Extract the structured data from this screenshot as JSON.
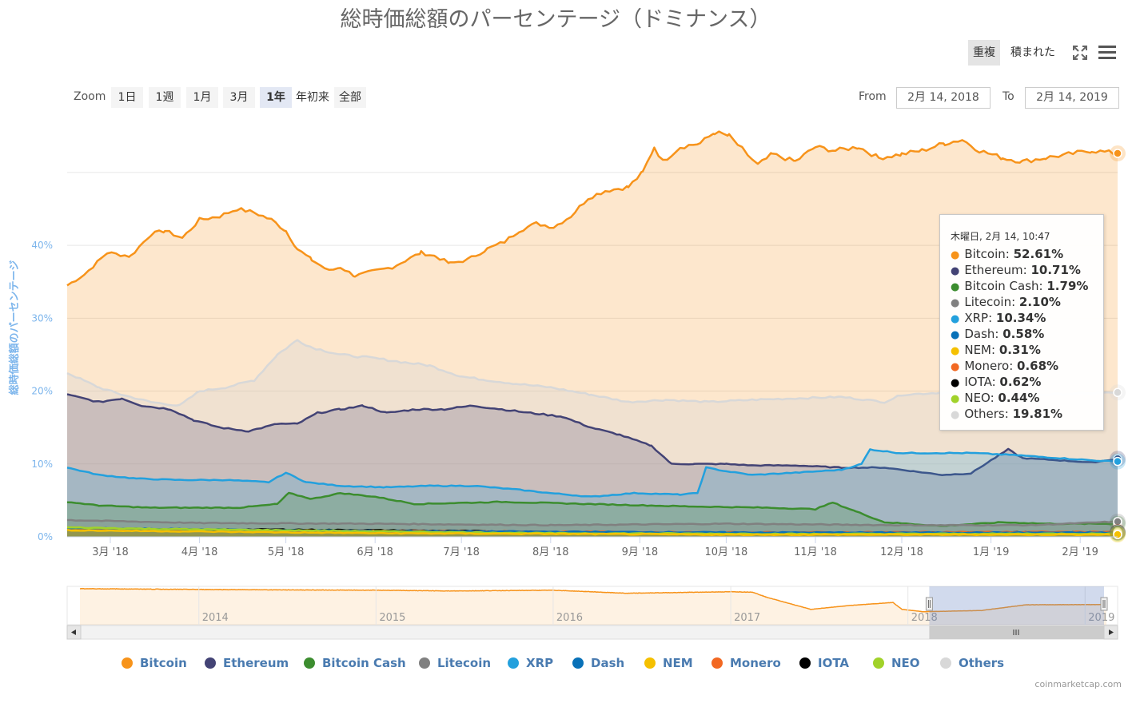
{
  "title": "総時価総額のパーセンテージ（ドミナンス）",
  "stacking_buttons": [
    {
      "label": "重複",
      "active": true
    },
    {
      "label": "積まれた",
      "active": false
    }
  ],
  "zoom": {
    "label": "Zoom",
    "buttons": [
      {
        "label": "1日",
        "active": false
      },
      {
        "label": "1週",
        "active": false
      },
      {
        "label": "1月",
        "active": false
      },
      {
        "label": "3月",
        "active": false
      },
      {
        "label": "1年",
        "active": true
      },
      {
        "label": "年初来",
        "active": false
      },
      {
        "label": "全部",
        "active": false
      }
    ]
  },
  "range": {
    "from_label": "From",
    "from_value": "2月 14, 2018",
    "to_label": "To",
    "to_value": "2月 14, 2019"
  },
  "tooltip": {
    "date": "木曜日, 2月 14, 10:47",
    "rows": [
      {
        "name": "Bitcoin",
        "value": "52.61%",
        "color": "#f7931a"
      },
      {
        "name": "Ethereum",
        "value": "10.71%",
        "color": "#434375"
      },
      {
        "name": "Bitcoin Cash",
        "value": "1.79%",
        "color": "#3c8d2f"
      },
      {
        "name": "Litecoin",
        "value": "2.10%",
        "color": "#808080"
      },
      {
        "name": "XRP",
        "value": "10.34%",
        "color": "#23a0dd"
      },
      {
        "name": "Dash",
        "value": "0.58%",
        "color": "#0871b8"
      },
      {
        "name": "NEM",
        "value": "0.31%",
        "color": "#f5c000"
      },
      {
        "name": "Monero",
        "value": "0.68%",
        "color": "#f26822"
      },
      {
        "name": "IOTA",
        "value": "0.62%",
        "color": "#000000"
      },
      {
        "name": "NEO",
        "value": "0.44%",
        "color": "#a1d22a"
      },
      {
        "name": "Others",
        "value": "19.81%",
        "color": "#d8d8d8"
      }
    ]
  },
  "navigator": {
    "year_labels": [
      "2014",
      "2015",
      "2016",
      "2017",
      "2018",
      "2019"
    ]
  },
  "credits": "coinmarketcap.com",
  "chart_data": {
    "type": "area",
    "title": "総時価総額のパーセンテージ（ドミナンス）",
    "xlabel": "",
    "ylabel": "総時価総額のパーセンテージ",
    "x_ticks": [
      "3月 '18",
      "4月 '18",
      "5月 '18",
      "6月 '18",
      "7月 '18",
      "8月 '18",
      "9月 '18",
      "10月 '18",
      "11月 '18",
      "12月 '18",
      "1月 '19",
      "2月 '19"
    ],
    "y_ticks": [
      "0%",
      "10%",
      "20%",
      "30%",
      "40%"
    ],
    "ylim": [
      0,
      57
    ],
    "x_range": [
      "2018-02-14",
      "2019-02-14"
    ],
    "grid": true,
    "legend_position": "bottom",
    "series": [
      {
        "name": "Bitcoin",
        "color": "#f7931a",
        "points": [
          [
            "2018-02-14",
            34.5
          ],
          [
            "2018-02-20",
            36
          ],
          [
            "2018-02-28",
            39
          ],
          [
            "2018-03-08",
            38.5
          ],
          [
            "2018-03-15",
            41.5
          ],
          [
            "2018-03-20",
            42
          ],
          [
            "2018-03-26",
            41
          ],
          [
            "2018-04-01",
            43.5
          ],
          [
            "2018-04-08",
            44
          ],
          [
            "2018-04-14",
            45
          ],
          [
            "2018-04-20",
            44.5
          ],
          [
            "2018-04-26",
            43.5
          ],
          [
            "2018-05-01",
            42
          ],
          [
            "2018-05-05",
            39.5
          ],
          [
            "2018-05-10",
            38
          ],
          [
            "2018-05-16",
            36.5
          ],
          [
            "2018-05-20",
            37
          ],
          [
            "2018-05-25",
            35.8
          ],
          [
            "2018-06-01",
            36.5
          ],
          [
            "2018-06-07",
            37
          ],
          [
            "2018-06-12",
            38
          ],
          [
            "2018-06-17",
            39
          ],
          [
            "2018-06-22",
            38.5
          ],
          [
            "2018-06-27",
            37.5
          ],
          [
            "2018-07-03",
            38
          ],
          [
            "2018-07-10",
            39.5
          ],
          [
            "2018-07-16",
            40.5
          ],
          [
            "2018-07-21",
            42
          ],
          [
            "2018-07-27",
            43
          ],
          [
            "2018-08-02",
            42.5
          ],
          [
            "2018-08-08",
            44
          ],
          [
            "2018-08-14",
            46.5
          ],
          [
            "2018-08-20",
            47.5
          ],
          [
            "2018-08-28",
            48
          ],
          [
            "2018-09-02",
            50
          ],
          [
            "2018-09-06",
            53.5
          ],
          [
            "2018-09-09",
            51.5
          ],
          [
            "2018-09-15",
            53.5
          ],
          [
            "2018-09-22",
            54
          ],
          [
            "2018-09-27",
            55.5
          ],
          [
            "2018-10-02",
            55
          ],
          [
            "2018-10-07",
            53
          ],
          [
            "2018-10-12",
            51
          ],
          [
            "2018-10-17",
            52.5
          ],
          [
            "2018-10-25",
            51.5
          ],
          [
            "2018-11-01",
            53.5
          ],
          [
            "2018-11-08",
            53
          ],
          [
            "2018-11-16",
            53.5
          ],
          [
            "2018-11-23",
            52
          ],
          [
            "2018-12-01",
            52.5
          ],
          [
            "2018-12-08",
            53
          ],
          [
            "2018-12-16",
            54
          ],
          [
            "2018-12-22",
            54.5
          ],
          [
            "2018-12-28",
            53
          ],
          [
            "2019-01-05",
            52
          ],
          [
            "2019-01-12",
            51.5
          ],
          [
            "2019-01-20",
            52
          ],
          [
            "2019-01-28",
            52.5
          ],
          [
            "2019-02-05",
            53
          ],
          [
            "2019-02-14",
            52.61
          ]
        ]
      },
      {
        "name": "Others",
        "color": "#d8d8d8",
        "points": [
          [
            "2018-02-14",
            22.5
          ],
          [
            "2018-02-25",
            20.5
          ],
          [
            "2018-03-05",
            19.5
          ],
          [
            "2018-03-15",
            18.5
          ],
          [
            "2018-03-25",
            18
          ],
          [
            "2018-04-01",
            20
          ],
          [
            "2018-04-10",
            20.5
          ],
          [
            "2018-04-20",
            21.5
          ],
          [
            "2018-04-28",
            25
          ],
          [
            "2018-05-05",
            27
          ],
          [
            "2018-05-10",
            26
          ],
          [
            "2018-05-20",
            25
          ],
          [
            "2018-06-01",
            24.5
          ],
          [
            "2018-06-10",
            24
          ],
          [
            "2018-06-20",
            23.5
          ],
          [
            "2018-07-01",
            22
          ],
          [
            "2018-07-10",
            21.5
          ],
          [
            "2018-07-20",
            21
          ],
          [
            "2018-08-01",
            20.5
          ],
          [
            "2018-08-15",
            19.5
          ],
          [
            "2018-08-28",
            18.5
          ],
          [
            "2018-09-10",
            18.8
          ],
          [
            "2018-09-25",
            18.5
          ],
          [
            "2018-10-10",
            18.8
          ],
          [
            "2018-10-25",
            19
          ],
          [
            "2018-11-10",
            19.2
          ],
          [
            "2018-11-25",
            18.5
          ],
          [
            "2018-12-01",
            19.5
          ],
          [
            "2018-12-15",
            19.8
          ],
          [
            "2019-01-01",
            19.8
          ],
          [
            "2019-01-20",
            19.5
          ],
          [
            "2019-02-14",
            19.81
          ]
        ]
      },
      {
        "name": "Ethereum",
        "color": "#434375",
        "points": [
          [
            "2018-02-14",
            19.5
          ],
          [
            "2018-02-25",
            18.5
          ],
          [
            "2018-03-05",
            19
          ],
          [
            "2018-03-12",
            18
          ],
          [
            "2018-03-22",
            17.5
          ],
          [
            "2018-03-30",
            16
          ],
          [
            "2018-04-08",
            15
          ],
          [
            "2018-04-18",
            14.5
          ],
          [
            "2018-04-28",
            15.5
          ],
          [
            "2018-05-05",
            15.5
          ],
          [
            "2018-05-12",
            17
          ],
          [
            "2018-05-20",
            17.5
          ],
          [
            "2018-05-28",
            18
          ],
          [
            "2018-06-05",
            17
          ],
          [
            "2018-06-15",
            17.5
          ],
          [
            "2018-06-25",
            17.5
          ],
          [
            "2018-07-05",
            18
          ],
          [
            "2018-07-15",
            17.5
          ],
          [
            "2018-07-25",
            17
          ],
          [
            "2018-08-05",
            16.5
          ],
          [
            "2018-08-15",
            15
          ],
          [
            "2018-08-25",
            14
          ],
          [
            "2018-09-05",
            12.5
          ],
          [
            "2018-09-12",
            10
          ],
          [
            "2018-09-20",
            10
          ],
          [
            "2018-10-01",
            10
          ],
          [
            "2018-10-10",
            9.8
          ],
          [
            "2018-10-25",
            9.8
          ],
          [
            "2018-11-10",
            9.5
          ],
          [
            "2018-11-25",
            9.5
          ],
          [
            "2018-12-05",
            9
          ],
          [
            "2018-12-15",
            8.5
          ],
          [
            "2018-12-25",
            8.7
          ],
          [
            "2019-01-01",
            10.5
          ],
          [
            "2019-01-07",
            12
          ],
          [
            "2019-01-12",
            10.8
          ],
          [
            "2019-01-25",
            10.5
          ],
          [
            "2019-02-05",
            10.2
          ],
          [
            "2019-02-14",
            10.71
          ]
        ]
      },
      {
        "name": "XRP",
        "color": "#23a0dd",
        "points": [
          [
            "2018-02-14",
            9.5
          ],
          [
            "2018-02-25",
            8.5
          ],
          [
            "2018-03-10",
            8
          ],
          [
            "2018-03-25",
            7.8
          ],
          [
            "2018-04-10",
            7.8
          ],
          [
            "2018-04-25",
            7.5
          ],
          [
            "2018-05-01",
            8.8
          ],
          [
            "2018-05-08",
            7.5
          ],
          [
            "2018-05-20",
            7
          ],
          [
            "2018-06-05",
            6.8
          ],
          [
            "2018-06-20",
            7
          ],
          [
            "2018-07-05",
            7
          ],
          [
            "2018-07-20",
            6.5
          ],
          [
            "2018-08-01",
            6
          ],
          [
            "2018-08-15",
            5.5
          ],
          [
            "2018-08-30",
            6
          ],
          [
            "2018-09-15",
            5.8
          ],
          [
            "2018-09-21",
            6
          ],
          [
            "2018-09-24",
            9.5
          ],
          [
            "2018-10-01",
            9
          ],
          [
            "2018-10-10",
            8.5
          ],
          [
            "2018-10-25",
            8.8
          ],
          [
            "2018-11-10",
            9.2
          ],
          [
            "2018-11-17",
            10
          ],
          [
            "2018-11-20",
            12
          ],
          [
            "2018-11-30",
            11.5
          ],
          [
            "2018-12-10",
            11.5
          ],
          [
            "2018-12-25",
            11.5
          ],
          [
            "2019-01-10",
            11.2
          ],
          [
            "2019-01-25",
            10.8
          ],
          [
            "2019-02-05",
            10.5
          ],
          [
            "2019-02-14",
            10.34
          ]
        ]
      },
      {
        "name": "Bitcoin Cash",
        "color": "#3c8d2f",
        "points": [
          [
            "2018-02-14",
            4.8
          ],
          [
            "2018-02-25",
            4.3
          ],
          [
            "2018-03-15",
            4
          ],
          [
            "2018-04-15",
            4
          ],
          [
            "2018-04-28",
            4.5
          ],
          [
            "2018-05-02",
            6
          ],
          [
            "2018-05-10",
            5.2
          ],
          [
            "2018-05-20",
            6
          ],
          [
            "2018-06-01",
            5.5
          ],
          [
            "2018-06-15",
            4.5
          ],
          [
            "2018-07-15",
            4.8
          ],
          [
            "2018-08-15",
            4.5
          ],
          [
            "2018-09-15",
            4.2
          ],
          [
            "2018-10-15",
            4
          ],
          [
            "2018-11-01",
            3.8
          ],
          [
            "2018-11-07",
            4.7
          ],
          [
            "2018-11-15",
            3.5
          ],
          [
            "2018-11-25",
            2
          ],
          [
            "2018-12-15",
            1.5
          ],
          [
            "2019-01-05",
            2
          ],
          [
            "2019-01-20",
            1.8
          ],
          [
            "2019-02-14",
            1.79
          ]
        ]
      },
      {
        "name": "Litecoin",
        "color": "#808080",
        "points": [
          [
            "2018-02-14",
            2.3
          ],
          [
            "2018-04-01",
            1.9
          ],
          [
            "2018-06-01",
            1.8
          ],
          [
            "2018-08-01",
            1.6
          ],
          [
            "2018-10-01",
            1.8
          ],
          [
            "2018-12-01",
            1.6
          ],
          [
            "2019-01-15",
            1.6
          ],
          [
            "2019-02-14",
            2.1
          ]
        ]
      },
      {
        "name": "IOTA",
        "color": "#000000",
        "points": [
          [
            "2018-02-14",
            0.9
          ],
          [
            "2018-05-01",
            1
          ],
          [
            "2018-07-01",
            0.8
          ],
          [
            "2018-09-01",
            0.5
          ],
          [
            "2018-11-01",
            0.5
          ],
          [
            "2019-01-01",
            0.6
          ],
          [
            "2019-02-14",
            0.62
          ]
        ]
      },
      {
        "name": "Monero",
        "color": "#f26822",
        "points": [
          [
            "2018-02-14",
            1.1
          ],
          [
            "2018-06-01",
            0.8
          ],
          [
            "2018-10-01",
            0.6
          ],
          [
            "2019-02-14",
            0.68
          ]
        ]
      },
      {
        "name": "Dash",
        "color": "#0871b8",
        "points": [
          [
            "2018-02-14",
            1.2
          ],
          [
            "2018-06-01",
            0.8
          ],
          [
            "2018-10-01",
            0.6
          ],
          [
            "2019-02-14",
            0.58
          ]
        ]
      },
      {
        "name": "NEO",
        "color": "#a1d22a",
        "points": [
          [
            "2018-02-14",
            1.3
          ],
          [
            "2018-03-15",
            1.1
          ],
          [
            "2018-05-01",
            0.9
          ],
          [
            "2018-08-01",
            0.5
          ],
          [
            "2018-11-01",
            0.4
          ],
          [
            "2019-02-14",
            0.44
          ]
        ]
      },
      {
        "name": "NEM",
        "color": "#f5c000",
        "points": [
          [
            "2018-02-14",
            0.9
          ],
          [
            "2018-06-01",
            0.5
          ],
          [
            "2018-10-01",
            0.3
          ],
          [
            "2019-02-14",
            0.31
          ]
        ]
      }
    ],
    "navigator_series": {
      "name": "Bitcoin",
      "points": [
        [
          "2013-05-01",
          94
        ],
        [
          "2014-01-01",
          92
        ],
        [
          "2014-06-01",
          91
        ],
        [
          "2015-01-01",
          90
        ],
        [
          "2015-06-01",
          88
        ],
        [
          "2016-01-01",
          90
        ],
        [
          "2016-06-01",
          82
        ],
        [
          "2017-01-01",
          86
        ],
        [
          "2017-02-15",
          85
        ],
        [
          "2017-03-15",
          72
        ],
        [
          "2017-06-15",
          40
        ],
        [
          "2017-09-01",
          50
        ],
        [
          "2017-12-01",
          58
        ],
        [
          "2017-12-20",
          40
        ],
        [
          "2018-02-01",
          34
        ],
        [
          "2018-06-01",
          37
        ],
        [
          "2018-09-01",
          52
        ],
        [
          "2019-02-14",
          52.6
        ]
      ]
    },
    "navigator_selection": [
      "2018-02-14",
      "2019-02-14"
    ]
  }
}
